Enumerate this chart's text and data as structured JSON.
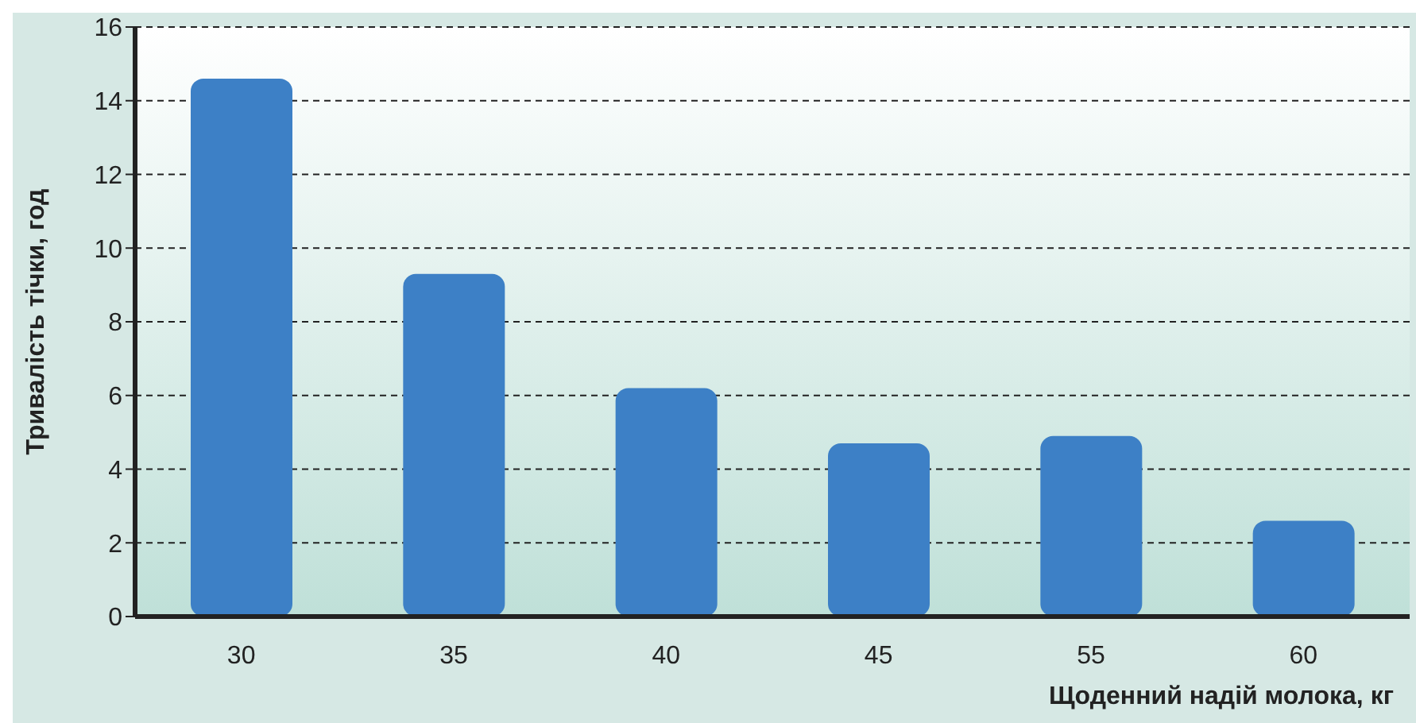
{
  "chart_data": {
    "type": "bar",
    "xlabel": "Щоденний надій молока, кг",
    "ylabel": "Тривалість тічки, год",
    "categories": [
      "30",
      "35",
      "40",
      "45",
      "55",
      "60"
    ],
    "values": [
      14.6,
      9.3,
      6.2,
      4.7,
      4.9,
      2.6
    ],
    "color": "#3d80c6",
    "ylim": [
      0,
      16
    ],
    "yticks": [
      0,
      2,
      4,
      6,
      8,
      10,
      12,
      14,
      16
    ],
    "grid": "y"
  }
}
